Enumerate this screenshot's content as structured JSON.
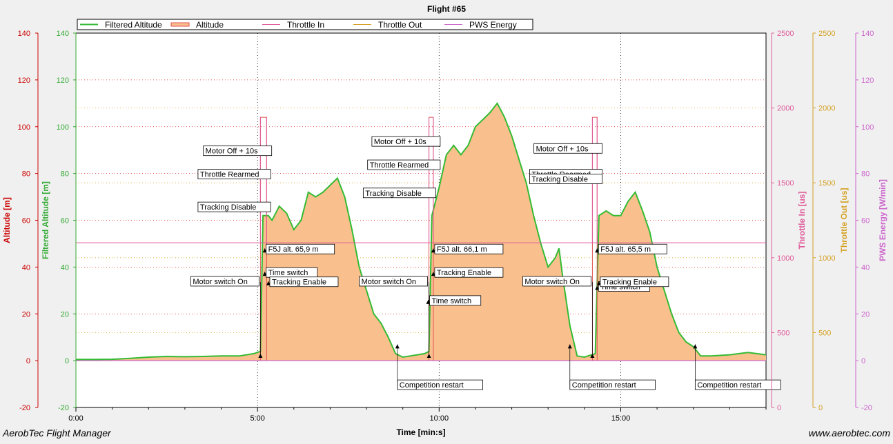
{
  "footer": {
    "app_name": "AerobTec Flight Manager",
    "website": "www.aerobtec.com"
  },
  "chart_data": {
    "type": "area",
    "title": "Flight #65",
    "xlabel": "Time [min:s]",
    "x_unit": "minutes",
    "xlim": [
      0,
      19
    ],
    "x_ticks": [
      0,
      5,
      10,
      15
    ],
    "x_tick_labels": [
      "0:00",
      "5:00",
      "10:00",
      "15:00"
    ],
    "grid": true,
    "legend_position": "top-left",
    "legend": [
      "Filtered Altitude",
      "Altitude",
      "Throttle In",
      "Throttle Out",
      "PWS Energy"
    ],
    "axes": [
      {
        "id": "altitude",
        "label": "Altitude [m]",
        "side": "left",
        "color": "#cc0000",
        "ylim": [
          -20,
          140
        ],
        "ticks": [
          -20,
          0,
          20,
          40,
          60,
          80,
          100,
          120,
          140
        ]
      },
      {
        "id": "filtered_altitude",
        "label": "Filtered Altitude [m]",
        "side": "left",
        "color": "#33aa33",
        "ylim": [
          -20,
          140
        ],
        "ticks": [
          -20,
          0,
          20,
          40,
          60,
          80,
          100,
          120,
          140
        ]
      },
      {
        "id": "throttle_in",
        "label": "Throttle In [us]",
        "side": "right",
        "color": "#e05a9a",
        "ylim": [
          0,
          2500
        ],
        "ticks": [
          0,
          500,
          1000,
          1500,
          2000,
          2500
        ]
      },
      {
        "id": "throttle_out",
        "label": "Throttle Out [us]",
        "side": "right",
        "color": "#d4a020",
        "ylim": [
          0,
          2500
        ],
        "ticks": [
          0,
          500,
          1000,
          1500,
          2000,
          2500
        ]
      },
      {
        "id": "pws_energy",
        "label": "PWS Energy [W/min]",
        "side": "right",
        "color": "#cc66cc",
        "ylim": [
          -20,
          140
        ],
        "ticks": [
          -20,
          0,
          20,
          40,
          60,
          80,
          100,
          120,
          140
        ]
      }
    ],
    "series": [
      {
        "name": "Filtered Altitude",
        "axis": "filtered_altitude",
        "color": "#33bb33",
        "fill": "#f9c08e",
        "x": [
          0,
          0.5,
          1,
          1.5,
          2,
          2.5,
          3,
          3.5,
          4,
          4.5,
          4.9,
          5.08,
          5.15,
          5.3,
          5.4,
          5.6,
          5.8,
          6.0,
          6.2,
          6.4,
          6.6,
          6.8,
          7.0,
          7.2,
          7.4,
          7.6,
          7.8,
          8.0,
          8.2,
          8.4,
          8.6,
          8.8,
          9.0,
          9.2,
          9.4,
          9.6,
          9.72,
          9.8,
          10.0,
          10.2,
          10.4,
          10.6,
          10.8,
          11.0,
          11.2,
          11.4,
          11.6,
          11.8,
          12.0,
          12.2,
          12.4,
          12.6,
          12.8,
          13.0,
          13.2,
          13.3,
          13.4,
          13.6,
          13.8,
          14.0,
          14.2,
          14.3,
          14.4,
          14.6,
          14.8,
          15.0,
          15.2,
          15.4,
          15.6,
          15.8,
          16.0,
          16.2,
          16.4,
          16.6,
          16.8,
          17.0,
          17.2,
          17.5,
          18.0,
          18.5,
          19.0
        ],
        "values": [
          0.5,
          0.5,
          0.6,
          1.0,
          1.5,
          1.8,
          1.7,
          1.8,
          2.0,
          2.0,
          3.0,
          4.0,
          62,
          62,
          60,
          66,
          63,
          56,
          60,
          72,
          70,
          72,
          75,
          78,
          70,
          56,
          40,
          30,
          20,
          16,
          10,
          3,
          1.5,
          2,
          2.5,
          3,
          4,
          62,
          74,
          88,
          92,
          88,
          92,
          100,
          103,
          106,
          110,
          104,
          96,
          86,
          76,
          62,
          50,
          40,
          44,
          48,
          36,
          15,
          2,
          1.5,
          2.5,
          3,
          62,
          64,
          62,
          62,
          68,
          72,
          64,
          55,
          40,
          30,
          20,
          12,
          8,
          6,
          2,
          2,
          2.5,
          3.5,
          2.5
        ]
      },
      {
        "name": "Altitude",
        "axis": "altitude",
        "color": "#e05050",
        "pulse_start": [
          5.08,
          9.72,
          14.22
        ],
        "pulse_end": [
          5.25,
          9.84,
          14.35
        ],
        "pulse_value": 104
      },
      {
        "name": "Throttle In",
        "axis": "throttle_in",
        "color": "#e05a9a",
        "base_value": 1100,
        "dip_start": [
          5.08,
          9.72,
          14.22
        ],
        "dip_end": [
          5.25,
          9.84,
          14.35
        ],
        "dip_value": 1100
      },
      {
        "name": "Throttle Out",
        "axis": "throttle_out",
        "color": "#d4a020",
        "values": [
          0
        ]
      },
      {
        "name": "PWS Energy",
        "axis": "pws_energy",
        "color": "#cc66cc",
        "base_value": 0
      }
    ],
    "annotations": [
      {
        "text": "Motor switch On",
        "x": 5.08,
        "y": 3
      },
      {
        "text": "Tracking Disable",
        "x": 5.17,
        "y": 66
      },
      {
        "text": "Throttle Rearmed",
        "x": 5.17,
        "y": 80
      },
      {
        "text": "Motor Off + 10s",
        "x": 5.2,
        "y": 90
      },
      {
        "text": "Time switch",
        "x": 5.2,
        "y": 38
      },
      {
        "text": "Tracking Enable",
        "x": 5.3,
        "y": 34
      },
      {
        "text": "F5J alt. 65,9 m",
        "x": 5.2,
        "y": 48
      },
      {
        "text": "Competition restart",
        "x": 8.85,
        "y": 7
      },
      {
        "text": "Motor switch On",
        "x": 9.72,
        "y": 3
      },
      {
        "text": "Tracking Disable",
        "x": 9.72,
        "y": 72
      },
      {
        "text": "Throttle Rearmed",
        "x": 9.84,
        "y": 84
      },
      {
        "text": "Motor Off + 10s",
        "x": 9.84,
        "y": 94
      },
      {
        "text": "F5J alt. 66,1 m",
        "x": 9.84,
        "y": 48
      },
      {
        "text": "Tracking Enable",
        "x": 9.84,
        "y": 38
      },
      {
        "text": "Time switch",
        "x": 9.7,
        "y": 26
      },
      {
        "text": "Competition restart",
        "x": 13.6,
        "y": 7
      },
      {
        "text": "Motor switch On",
        "x": 14.22,
        "y": 3
      },
      {
        "text": "Throttle Rearmed",
        "x": 14.3,
        "y": 80
      },
      {
        "text": "Tracking Disable",
        "x": 14.3,
        "y": 78
      },
      {
        "text": "Motor Off + 10s",
        "x": 14.3,
        "y": 91
      },
      {
        "text": "F5J alt. 65,5 m",
        "x": 14.35,
        "y": 48
      },
      {
        "text": "Time switch",
        "x": 14.35,
        "y": 32
      },
      {
        "text": "Tracking Enable",
        "x": 14.4,
        "y": 34
      },
      {
        "text": "Competition restart",
        "x": 17.05,
        "y": 7
      }
    ]
  }
}
